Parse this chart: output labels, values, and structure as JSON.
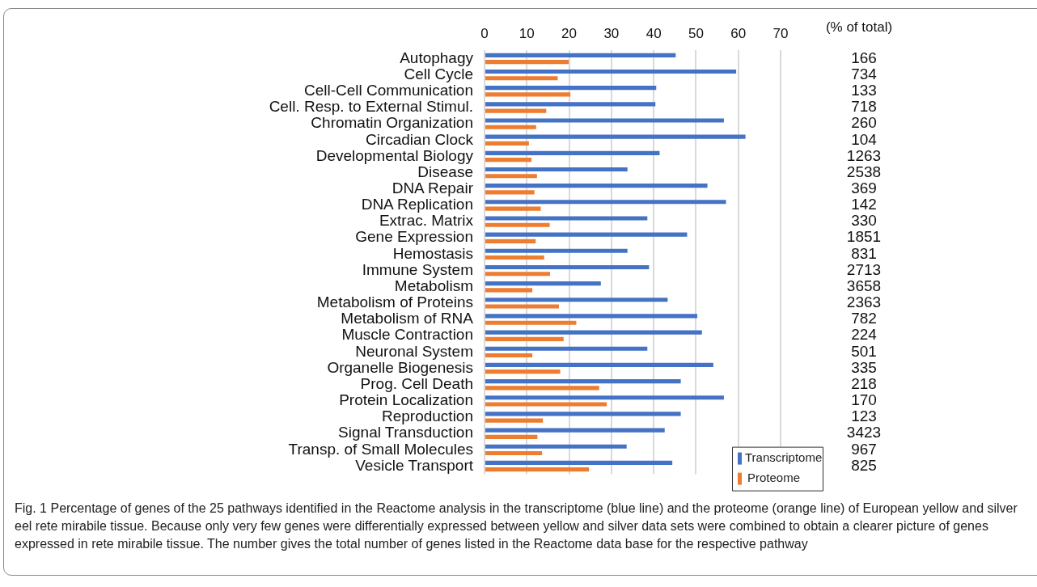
{
  "chart_data": {
    "type": "bar",
    "orientation": "horizontal",
    "xlabel": "(% of total)",
    "categories": [
      "Autophagy",
      "Cell Cycle",
      "Cell-Cell Communication",
      "Cell. Resp. to External Stimul.",
      "Chromatin Organization",
      "Circadian Clock",
      "Developmental Biology",
      "Disease",
      "DNA Repair",
      "DNA Replication",
      "Extrac. Matrix",
      "Gene Expression",
      "Hemostasis",
      "Immune System",
      "Metabolism",
      "Metabolism of Proteins",
      "Metabolism of RNA",
      "Muscle Contraction",
      "Neuronal System",
      "Organelle Biogenesis",
      "Prog. Cell Death",
      "Protein Localization",
      "Reproduction",
      "Signal Transduction",
      "Transp. of Small Molecules",
      "Vesicle Transport"
    ],
    "series": [
      {
        "name": "Transcriptome",
        "color": "#4472c4",
        "values": [
          45.2,
          59.5,
          40.6,
          40.4,
          56.6,
          61.7,
          41.4,
          33.8,
          52.7,
          57.1,
          38.5,
          47.9,
          33.8,
          38.9,
          27.5,
          43.3,
          50.3,
          51.4,
          38.5,
          54.1,
          46.4,
          56.6,
          46.4,
          42.6,
          33.6,
          44.4
        ]
      },
      {
        "name": "Proteome",
        "color": "#ed7d31",
        "values": [
          19.9,
          17.3,
          20.3,
          14.6,
          12.2,
          10.5,
          11.1,
          12.4,
          11.8,
          13.3,
          15.4,
          12.1,
          14.1,
          15.5,
          11.3,
          17.6,
          21.7,
          18.7,
          11.3,
          17.9,
          27.1,
          28.9,
          13.8,
          12.5,
          13.6,
          24.7
        ]
      }
    ],
    "xlim": [
      0,
      70
    ],
    "xticks": [
      0,
      10,
      20,
      30,
      40,
      50,
      60,
      70
    ],
    "grid": "x",
    "legend": "bottom right",
    "annotations": [
      "166",
      "734",
      "133",
      "718",
      "260",
      "104",
      "1263",
      "2538",
      "369",
      "142",
      "330",
      "1851",
      "831",
      "2713",
      "3658",
      "2363",
      "782",
      "224",
      "501",
      "335",
      "218",
      "170",
      "123",
      "3423",
      "967",
      "825",
      "Fig. 1  Percentage of genes of the 25 pathways identified in the Reactome analysis in the transcriptome (blue line) and the proteome (orange line) of European yellow and silver eel rete mirabile tissue. Because only very few genes were differentially expressed between yellow and silver data sets were combined to obtain a clearer picture of genes expressed in rete mirabile tissue. The number gives the total number of genes listed in the Reactome data base for the respective pathway"
    ]
  }
}
